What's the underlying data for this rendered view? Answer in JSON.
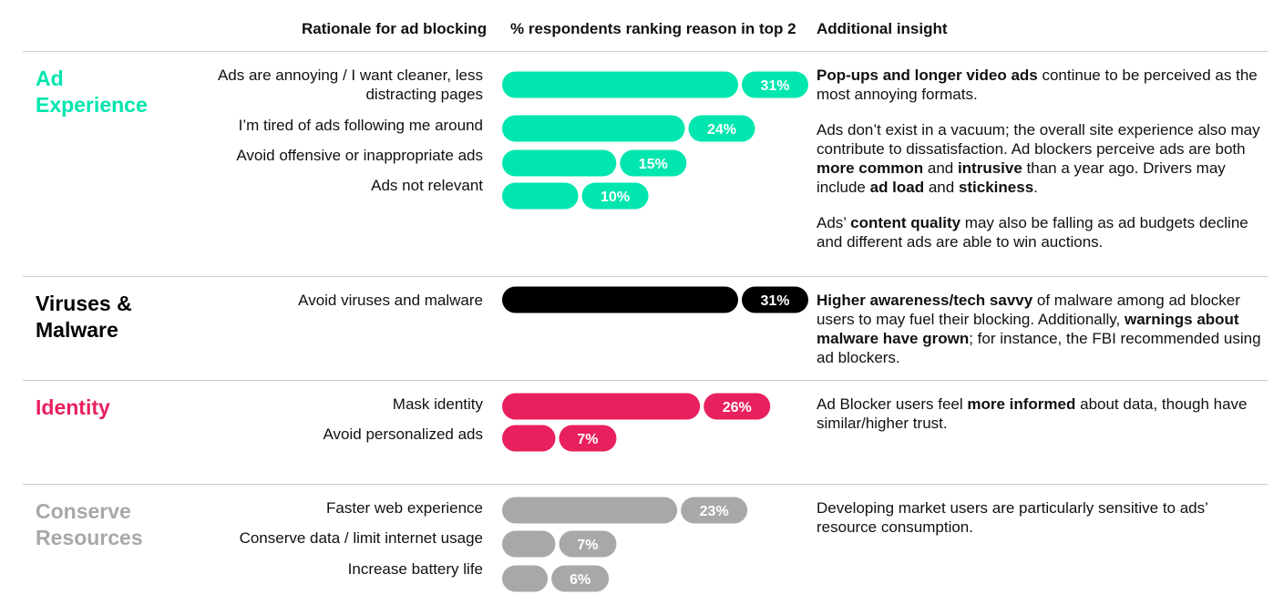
{
  "headers": {
    "rationale": "Rationale for ad blocking",
    "percent": "% respondents ranking reason in top 2",
    "insight": "Additional insight"
  },
  "colors": {
    "ad_experience": "#00E6AE",
    "viruses": "#000000",
    "identity": "#E8205E",
    "conserve": "#A8A8A8"
  },
  "categories": {
    "ad_experience": {
      "line1": "Ad",
      "line2": "Experience"
    },
    "viruses": {
      "line1": "Viruses &",
      "line2": "Malware"
    },
    "identity": {
      "line1": "Identity"
    },
    "conserve": {
      "line1": "Conserve",
      "line2": "Resources"
    }
  },
  "reasons": {
    "annoying_1": "Ads are annoying / I want cleaner, less",
    "annoying_2": "distracting pages",
    "following": "I’m tired of ads following me around",
    "offensive": "Avoid offensive or inappropriate ads",
    "not_relevant": "Ads not relevant",
    "viruses": "Avoid viruses and malware",
    "mask": "Mask identity",
    "personalized": "Avoid personalized ads",
    "faster": "Faster web experience",
    "data": "Conserve data / limit internet usage",
    "battery": "Increase battery life"
  },
  "insights": {
    "ad_p1_b1": "Pop-ups and longer video ads",
    "ad_p1_t1": " continue to be perceived as the most annoying formats.",
    "ad_p2_t1": "Ads don’t exist in a vacuum; the overall site experience also may contribute to dissatisfaction. Ad blockers perceive ads are both ",
    "ad_p2_b1": "more common",
    "ad_p2_t2": " and ",
    "ad_p2_b2": "intrusive",
    "ad_p2_t3": " than a year ago. Drivers may include ",
    "ad_p2_b3": "ad load",
    "ad_p2_t4": " and ",
    "ad_p2_b4": "stickiness",
    "ad_p2_t5": ".",
    "ad_p3_t1": "Ads’ ",
    "ad_p3_b1": "content quality",
    "ad_p3_t2": " may also be falling as ad budgets decline and different ads are able to win auctions.",
    "vm_b1": "Higher awareness/tech savvy",
    "vm_t1": " of malware among ad blocker users to may fuel their blocking. Additionally, ",
    "vm_b2": "warnings about malware have grown",
    "vm_t2": "; for instance, the FBI recommended using ad blockers.",
    "id_t1": "Ad Blocker users feel ",
    "id_b1": "more informed",
    "id_t2": " about data, though have similar/higher trust.",
    "cr_t1": "Developing market users are particularly sensitive to ads’ resource consumption."
  },
  "chart_data": {
    "type": "bar",
    "title": "% respondents ranking reason in top 2",
    "unit": "%",
    "orientation": "horizontal",
    "xlim": [
      0,
      31
    ],
    "series": [
      {
        "name": "Ad Experience",
        "color": "#00E6AE",
        "categories": [
          "Ads are annoying / I want cleaner, less distracting pages",
          "I’m tired of ads following me around",
          "Avoid offensive or inappropriate ads",
          "Ads not relevant"
        ],
        "values": [
          31,
          24,
          15,
          10
        ],
        "labels": [
          "31%",
          "24%",
          "15%",
          "10%"
        ]
      },
      {
        "name": "Viruses & Malware",
        "color": "#000000",
        "categories": [
          "Avoid viruses and malware"
        ],
        "values": [
          31
        ],
        "labels": [
          "31%"
        ]
      },
      {
        "name": "Identity",
        "color": "#E8205E",
        "categories": [
          "Mask identity",
          "Avoid personalized ads"
        ],
        "values": [
          26,
          7
        ],
        "labels": [
          "26%",
          "7%"
        ]
      },
      {
        "name": "Conserve Resources",
        "color": "#A8A8A8",
        "categories": [
          "Faster web experience",
          "Conserve data / limit internet usage",
          "Increase battery life"
        ],
        "values": [
          23,
          7,
          6
        ],
        "labels": [
          "23%",
          "7%",
          "6%"
        ]
      }
    ]
  }
}
